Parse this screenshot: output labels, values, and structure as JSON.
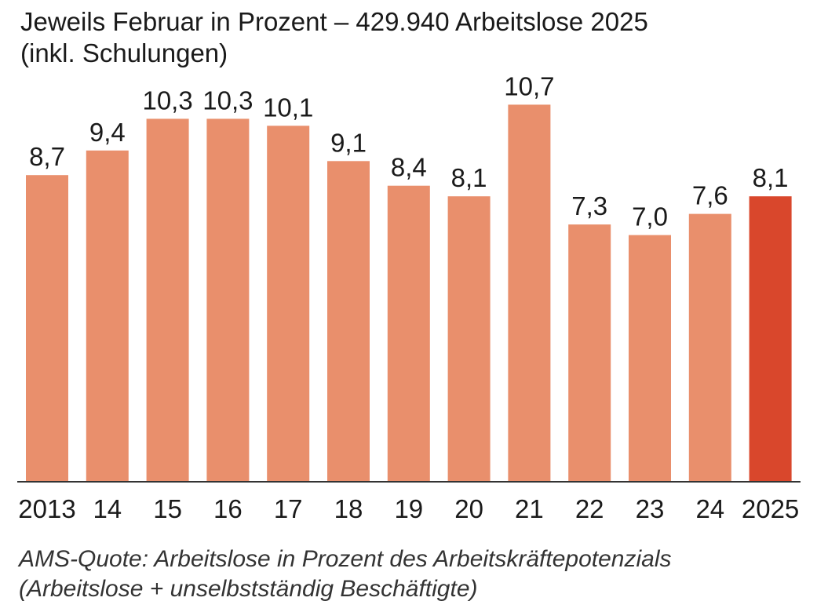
{
  "header": {
    "title_line1": "Jeweils Februar in Prozent – 429.940 Arbeitslose 2025",
    "title_line2": "(inkl. Schulungen)"
  },
  "footnote": {
    "line1": "AMS-Quote: Arbeitslose in Prozent des Arbeitskräftepotenzials",
    "line2": "(Arbeitslose + unselbstständig Beschäftigte)"
  },
  "colors": {
    "bar": "#e98f6c",
    "bar_highlight": "#d9472c",
    "axis": "#333333",
    "text": "#1a1a1a"
  },
  "chart_data": {
    "type": "bar",
    "title": "Jeweils Februar in Prozent – 429.940 Arbeitslose 2025",
    "subtitle": "(inkl. Schulungen)",
    "xlabel": "",
    "ylabel": "",
    "categories": [
      "2013",
      "14",
      "15",
      "16",
      "17",
      "18",
      "19",
      "20",
      "21",
      "22",
      "23",
      "24",
      "2025"
    ],
    "values": [
      8.7,
      9.4,
      10.3,
      10.3,
      10.1,
      9.1,
      8.4,
      8.1,
      10.7,
      7.3,
      7.0,
      7.6,
      8.1
    ],
    "value_labels": [
      "8,7",
      "9,4",
      "10,3",
      "10,3",
      "10,1",
      "9,1",
      "8,4",
      "8,1",
      "10,7",
      "7,3",
      "7,0",
      "7,6",
      "8,1"
    ],
    "highlight_index": 12,
    "ylim": [
      0,
      12
    ],
    "grid": false,
    "legend": "none"
  }
}
